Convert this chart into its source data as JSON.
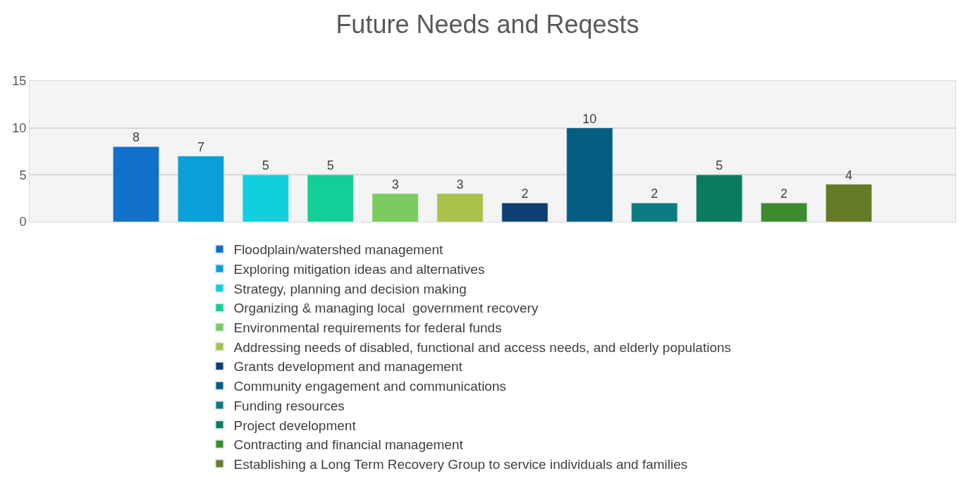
{
  "chart_data": {
    "type": "bar",
    "title": "Future Needs and Reqests",
    "categories": [
      null
    ],
    "series": [
      {
        "name": "Floodplain/watershed management",
        "color": "#1170c9",
        "values": [
          8
        ]
      },
      {
        "name": "Exploring mitigation ideas and alternatives",
        "color": "#0a9fd9",
        "values": [
          7
        ]
      },
      {
        "name": "Strategy, planning and decision making",
        "color": "#0fd0dc",
        "values": [
          5
        ]
      },
      {
        "name": "Organizing & managing local  government recovery",
        "color": "#12cf98",
        "values": [
          5
        ]
      },
      {
        "name": "Environmental requirements for federal funds",
        "color": "#7bcc5e",
        "values": [
          3
        ]
      },
      {
        "name": "Addressing needs of disabled, functional and access needs, and elderly populations",
        "color": "#a8c24a",
        "values": [
          3
        ]
      },
      {
        "name": "Grants development and management",
        "color": "#0d3f73",
        "values": [
          2
        ]
      },
      {
        "name": "Community engagement and communications",
        "color": "#045e82",
        "values": [
          10
        ]
      },
      {
        "name": "Funding resources",
        "color": "#0b7b82",
        "values": [
          2
        ]
      },
      {
        "name": "Project development",
        "color": "#0b7b5e",
        "values": [
          5
        ]
      },
      {
        "name": "Contracting and financial management",
        "color": "#3e8b2f",
        "values": [
          2
        ]
      },
      {
        "name": "Establishing a Long Term Recovery Group to service individuals and families",
        "color": "#667b26",
        "values": [
          4
        ]
      }
    ],
    "ylim": [
      0,
      15
    ],
    "yticks": [
      0,
      5,
      10,
      15
    ],
    "grid": "y",
    "data_labels": true,
    "legend": "bottom"
  }
}
